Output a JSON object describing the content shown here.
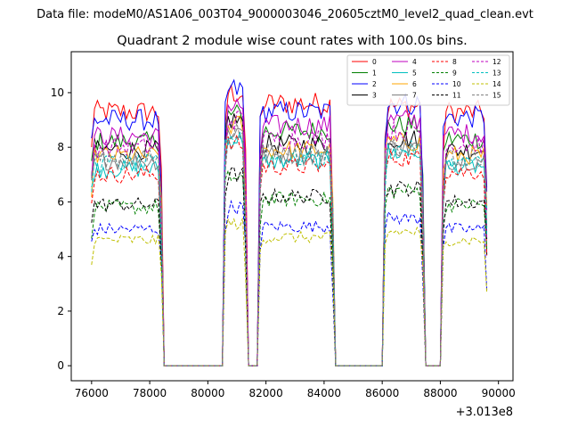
{
  "header": {
    "data_file": "Data file: modeM0/AS1A06_003T04_9000003046_20605cztM0_level2_quad_clean.evt"
  },
  "chart_data": {
    "type": "line",
    "title": "Quadrant 2 module wise count rates with 100.0s bins.",
    "xlabel": "",
    "ylabel": "",
    "x_offset_label": "+3.013e8",
    "xlim": [
      75300,
      90500
    ],
    "ylim": [
      -0.55,
      11.5
    ],
    "x_ticks": [
      76000,
      78000,
      80000,
      82000,
      84000,
      86000,
      88000,
      90000
    ],
    "x_tick_labels": [
      "76000",
      "78000",
      "80000",
      "82000",
      "84000",
      "86000",
      "88000",
      "90000"
    ],
    "y_ticks": [
      0,
      2,
      4,
      6,
      8,
      10
    ],
    "y_tick_labels": [
      "0",
      "2",
      "4",
      "6",
      "8",
      "10"
    ],
    "legend_position": "top-right",
    "segments": [
      [
        76000,
        78400
      ],
      [
        80550,
        81350
      ],
      [
        81800,
        84300
      ],
      [
        86100,
        87450
      ],
      [
        88100,
        89600
      ]
    ],
    "series": [
      {
        "name": "0",
        "color": "#ff0000",
        "dash": "solid",
        "levels": [
          9.3,
          10.0,
          9.6,
          9.5,
          9.3
        ]
      },
      {
        "name": "1",
        "color": "#008000",
        "dash": "solid",
        "levels": [
          8.2,
          9.2,
          8.6,
          8.8,
          8.3
        ]
      },
      {
        "name": "2",
        "color": "#0000ff",
        "dash": "solid",
        "levels": [
          9.0,
          10.1,
          9.3,
          9.6,
          9.1
        ]
      },
      {
        "name": "3",
        "color": "#000000",
        "dash": "solid",
        "levels": [
          7.9,
          9.0,
          8.1,
          8.3,
          7.9
        ]
      },
      {
        "name": "4",
        "color": "#bf00bf",
        "dash": "solid",
        "levels": [
          8.4,
          9.5,
          8.8,
          9.0,
          8.5
        ]
      },
      {
        "name": "5",
        "color": "#00bfbf",
        "dash": "solid",
        "levels": [
          7.2,
          8.3,
          7.5,
          7.8,
          7.3
        ]
      },
      {
        "name": "6",
        "color": "#ffa500",
        "dash": "solid",
        "levels": [
          7.7,
          8.8,
          7.9,
          8.2,
          7.7
        ]
      },
      {
        "name": "7",
        "color": "#808080",
        "dash": "solid",
        "levels": [
          7.5,
          8.6,
          7.7,
          8.0,
          7.5
        ]
      },
      {
        "name": "8",
        "color": "#ff0000",
        "dash": "dashed",
        "levels": [
          7.0,
          8.1,
          7.3,
          7.6,
          7.1
        ]
      },
      {
        "name": "9",
        "color": "#008000",
        "dash": "dashed",
        "levels": [
          5.8,
          6.9,
          6.1,
          6.4,
          5.9
        ]
      },
      {
        "name": "10",
        "color": "#0000ff",
        "dash": "dashed",
        "levels": [
          5.0,
          5.8,
          5.1,
          5.4,
          5.0
        ]
      },
      {
        "name": "11",
        "color": "#000000",
        "dash": "dashed",
        "levels": [
          5.9,
          7.0,
          6.2,
          6.5,
          6.0
        ]
      },
      {
        "name": "12",
        "color": "#bf00bf",
        "dash": "dashed",
        "levels": [
          8.0,
          9.0,
          8.3,
          8.6,
          8.1
        ]
      },
      {
        "name": "13",
        "color": "#00bfbf",
        "dash": "dashed",
        "levels": [
          7.4,
          8.4,
          7.6,
          7.9,
          7.4
        ]
      },
      {
        "name": "14",
        "color": "#bfbf00",
        "dash": "dashed",
        "levels": [
          4.6,
          5.2,
          4.7,
          4.9,
          4.6
        ]
      },
      {
        "name": "15",
        "color": "#808080",
        "dash": "dashed",
        "levels": [
          7.6,
          8.6,
          7.8,
          8.1,
          7.6
        ]
      }
    ]
  }
}
